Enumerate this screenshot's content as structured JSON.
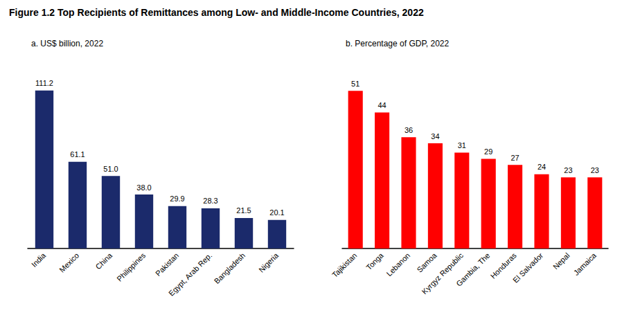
{
  "title": "Figure 1.2 Top Recipients of Remittances among Low- and Middle-Income Countries, 2022",
  "chart_data": [
    {
      "type": "bar",
      "title": "a. US$ billion, 2022",
      "categories": [
        "India",
        "Mexico",
        "China",
        "Philippines",
        "Pakistan",
        "Egypt, Arab Rep.",
        "Bangladesh",
        "Nigeria"
      ],
      "values": [
        111.2,
        61.1,
        51.0,
        38.0,
        29.9,
        28.3,
        21.5,
        20.1
      ],
      "value_labels": [
        "111.2",
        "61.1",
        "51.0",
        "38.0",
        "29.9",
        "28.3",
        "21.5",
        "20.1"
      ],
      "color": "#1B2A6B",
      "ylim": [
        0,
        135
      ],
      "grid": false,
      "data_labels": true,
      "tick_labels": "x"
    },
    {
      "type": "bar",
      "title": "b. Percentage of GDP, 2022",
      "categories": [
        "Tajikistan",
        "Tonga",
        "Lebanon",
        "Samoa",
        "Kyrgyz Republic",
        "Gambia, The",
        "Honduras",
        "El Salvador",
        "Nepal",
        "Jamaica"
      ],
      "values": [
        51,
        44,
        36,
        34,
        31,
        29,
        27,
        24,
        23,
        23
      ],
      "color": "#FF0000",
      "ylim": [
        0,
        62
      ],
      "grid": false,
      "data_labels": true,
      "tick_labels": "x"
    }
  ]
}
